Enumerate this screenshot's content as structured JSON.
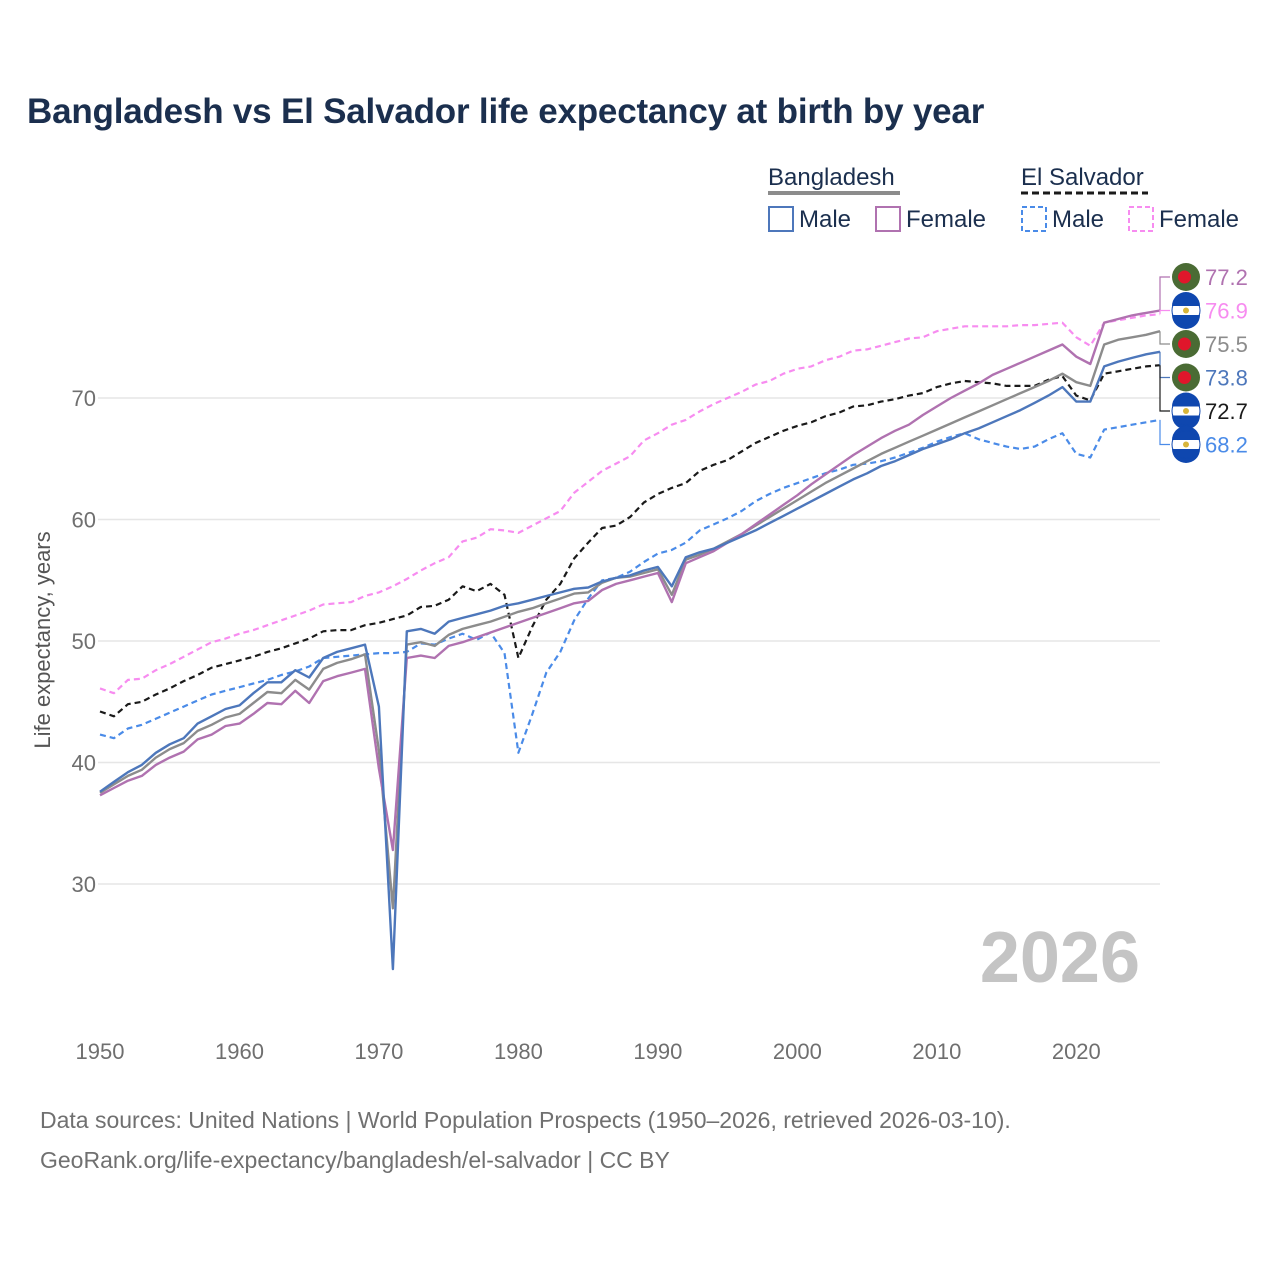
{
  "title": "Bangladesh vs El Salvador life expectancy at birth by year",
  "source": {
    "line1": "Data sources: United Nations | World Population Prospects (1950–2026, retrieved 2026-03-10).",
    "line2": "GeoRank.org/life-expectancy/bangladesh/el-salvador | CC BY"
  },
  "legend": {
    "groups": [
      {
        "country": "Bangladesh",
        "items": [
          "Male",
          "Female"
        ]
      },
      {
        "country": "El Salvador",
        "items": [
          "Male",
          "Female"
        ]
      }
    ]
  },
  "colors": {
    "bgd_total": "#8c8c8c",
    "bgd_male": "#4d77bb",
    "bgd_female": "#b072b0",
    "slv_total": "#1a1a1a",
    "slv_male": "#4a8be8",
    "slv_female": "#f78cf0",
    "grid": "#e6e6e6",
    "title": "#1b2f4e"
  },
  "flags": {
    "bangladesh": "bangladesh-flag-icon",
    "el_salvador": "el-salvador-flag-icon"
  },
  "chart_data": {
    "type": "line",
    "title": "Bangladesh vs El Salvador life expectancy at birth by year",
    "xlabel": "",
    "ylabel": "Life expectancy, years",
    "xlim": [
      1950,
      2026
    ],
    "ylim": [
      22,
      78
    ],
    "xticks": [
      1950,
      1960,
      1970,
      1980,
      1990,
      2000,
      2010,
      2020
    ],
    "yticks": [
      30,
      40,
      50,
      60,
      70
    ],
    "current_year": "2026",
    "x": [
      1950,
      1951,
      1952,
      1953,
      1954,
      1955,
      1956,
      1957,
      1958,
      1959,
      1960,
      1961,
      1962,
      1963,
      1964,
      1965,
      1966,
      1967,
      1968,
      1969,
      1970,
      1971,
      1972,
      1973,
      1974,
      1975,
      1976,
      1977,
      1978,
      1979,
      1980,
      1981,
      1982,
      1983,
      1984,
      1985,
      1986,
      1987,
      1988,
      1989,
      1990,
      1991,
      1992,
      1993,
      1994,
      1995,
      1996,
      1997,
      1998,
      1999,
      2000,
      2001,
      2002,
      2003,
      2004,
      2005,
      2006,
      2007,
      2008,
      2009,
      2010,
      2011,
      2012,
      2013,
      2014,
      2015,
      2016,
      2017,
      2018,
      2019,
      2020,
      2021,
      2022,
      2023,
      2024,
      2025,
      2026
    ],
    "series": [
      {
        "name": "Bangladesh",
        "style": "solid",
        "color_key": "bgd_total",
        "end_label": "75.5",
        "flag": "bangladesh",
        "values": [
          37.5,
          38.2,
          38.9,
          39.4,
          40.4,
          41.1,
          41.6,
          42.6,
          43.1,
          43.7,
          44.0,
          44.9,
          45.8,
          45.7,
          46.8,
          46.0,
          47.7,
          48.2,
          48.5,
          48.9,
          41.0,
          28.0,
          49.7,
          49.9,
          49.6,
          50.5,
          51.0,
          51.3,
          51.6,
          52.0,
          52.4,
          52.7,
          53.1,
          53.5,
          53.9,
          54.0,
          54.8,
          55.2,
          55.3,
          55.6,
          55.9,
          53.8,
          56.7,
          57.1,
          57.6,
          58.2,
          58.8,
          59.5,
          60.2,
          60.9,
          61.6,
          62.3,
          63.0,
          63.6,
          64.2,
          64.8,
          65.4,
          65.9,
          66.4,
          66.9,
          67.4,
          67.9,
          68.4,
          68.9,
          69.4,
          69.9,
          70.4,
          70.9,
          71.4,
          72.0,
          71.3,
          71.0,
          74.4,
          74.8,
          75.0,
          75.2,
          75.5
        ]
      },
      {
        "name": "Bangladesh Male",
        "style": "solid",
        "color_key": "bgd_male",
        "end_label": "73.8",
        "flag": "bangladesh",
        "values": [
          37.6,
          38.4,
          39.2,
          39.8,
          40.8,
          41.5,
          42.0,
          43.2,
          43.8,
          44.4,
          44.7,
          45.7,
          46.6,
          46.6,
          47.6,
          47.0,
          48.6,
          49.1,
          49.4,
          49.7,
          44.6,
          23.0,
          50.8,
          51.0,
          50.6,
          51.6,
          51.9,
          52.2,
          52.5,
          52.9,
          53.1,
          53.4,
          53.7,
          54.0,
          54.3,
          54.4,
          54.9,
          55.2,
          55.4,
          55.8,
          56.1,
          54.5,
          56.9,
          57.3,
          57.6,
          58.1,
          58.6,
          59.1,
          59.7,
          60.3,
          60.9,
          61.5,
          62.1,
          62.7,
          63.3,
          63.8,
          64.4,
          64.8,
          65.3,
          65.8,
          66.2,
          66.6,
          67.1,
          67.5,
          68.0,
          68.5,
          69.0,
          69.6,
          70.2,
          70.9,
          69.7,
          69.7,
          72.6,
          73.0,
          73.3,
          73.6,
          73.8
        ]
      },
      {
        "name": "Bangladesh Female",
        "style": "solid",
        "color_key": "bgd_female",
        "end_label": "77.2",
        "flag": "bangladesh",
        "values": [
          37.3,
          37.9,
          38.5,
          38.9,
          39.8,
          40.4,
          40.9,
          41.9,
          42.3,
          43.0,
          43.2,
          44.0,
          44.9,
          44.8,
          45.9,
          44.9,
          46.7,
          47.1,
          47.4,
          47.7,
          39.5,
          32.8,
          48.6,
          48.8,
          48.6,
          49.6,
          49.9,
          50.3,
          50.7,
          51.1,
          51.5,
          51.9,
          52.3,
          52.7,
          53.1,
          53.3,
          54.2,
          54.7,
          55.0,
          55.3,
          55.6,
          53.2,
          56.4,
          56.9,
          57.4,
          58.1,
          58.8,
          59.6,
          60.4,
          61.2,
          62.0,
          62.9,
          63.7,
          64.5,
          65.3,
          66.0,
          66.7,
          67.3,
          67.8,
          68.6,
          69.3,
          70.0,
          70.6,
          71.2,
          71.9,
          72.4,
          72.9,
          73.4,
          73.9,
          74.4,
          73.4,
          72.8,
          76.2,
          76.5,
          76.8,
          77.0,
          77.2
        ]
      },
      {
        "name": "El Salvador",
        "style": "dashed",
        "color_key": "slv_total",
        "end_label": "72.7",
        "flag": "el_salvador",
        "values": [
          44.2,
          43.8,
          44.8,
          45.0,
          45.6,
          46.1,
          46.7,
          47.2,
          47.8,
          48.1,
          48.4,
          48.7,
          49.1,
          49.4,
          49.8,
          50.2,
          50.8,
          50.9,
          50.9,
          51.3,
          51.5,
          51.8,
          52.1,
          52.8,
          52.9,
          53.4,
          54.5,
          54.1,
          54.7,
          53.8,
          48.6,
          51.2,
          53.4,
          54.7,
          56.8,
          58.1,
          59.3,
          59.5,
          60.2,
          61.4,
          62.1,
          62.6,
          63.0,
          64.0,
          64.5,
          64.9,
          65.6,
          66.3,
          66.8,
          67.3,
          67.7,
          68.0,
          68.5,
          68.8,
          69.3,
          69.4,
          69.7,
          69.9,
          70.2,
          70.4,
          70.9,
          71.2,
          71.4,
          71.3,
          71.2,
          71.0,
          71.0,
          71.0,
          71.5,
          71.8,
          70.2,
          69.8,
          72.0,
          72.2,
          72.4,
          72.6,
          72.7
        ]
      },
      {
        "name": "El Salvador Male",
        "style": "dashed",
        "color_key": "slv_male",
        "end_label": "68.2",
        "flag": "el_salvador",
        "values": [
          42.3,
          42.0,
          42.8,
          43.1,
          43.6,
          44.1,
          44.6,
          45.1,
          45.6,
          45.9,
          46.2,
          46.5,
          46.8,
          47.2,
          47.5,
          47.9,
          48.6,
          48.7,
          48.8,
          48.9,
          49.0,
          49.0,
          49.1,
          49.8,
          49.7,
          50.2,
          50.6,
          50.1,
          50.7,
          49.0,
          40.8,
          44.0,
          47.4,
          49.1,
          51.7,
          53.5,
          55.0,
          55.2,
          55.7,
          56.5,
          57.2,
          57.5,
          58.1,
          59.1,
          59.6,
          60.1,
          60.7,
          61.5,
          62.1,
          62.6,
          63.0,
          63.4,
          63.8,
          64.1,
          64.5,
          64.6,
          64.8,
          65.1,
          65.5,
          65.9,
          66.4,
          66.8,
          67.1,
          66.6,
          66.3,
          66.0,
          65.8,
          66.0,
          66.6,
          67.1,
          65.4,
          65.1,
          67.4,
          67.6,
          67.8,
          68.0,
          68.2
        ]
      },
      {
        "name": "El Salvador Female",
        "style": "dashed",
        "color_key": "slv_female",
        "end_label": "76.9",
        "flag": "el_salvador",
        "values": [
          46.1,
          45.7,
          46.8,
          46.9,
          47.6,
          48.1,
          48.7,
          49.3,
          49.9,
          50.2,
          50.6,
          50.9,
          51.3,
          51.7,
          52.1,
          52.5,
          53.0,
          53.1,
          53.2,
          53.7,
          54.0,
          54.5,
          55.1,
          55.8,
          56.4,
          56.9,
          58.2,
          58.5,
          59.2,
          59.1,
          58.9,
          59.5,
          60.1,
          60.7,
          62.2,
          63.1,
          64.0,
          64.6,
          65.2,
          66.5,
          67.1,
          67.8,
          68.2,
          68.9,
          69.5,
          70.0,
          70.5,
          71.1,
          71.4,
          72.0,
          72.4,
          72.6,
          73.1,
          73.4,
          73.9,
          74.0,
          74.3,
          74.6,
          74.9,
          75.0,
          75.5,
          75.7,
          75.9,
          75.9,
          75.9,
          75.9,
          76.0,
          76.0,
          76.1,
          76.2,
          75.0,
          74.3,
          76.2,
          76.4,
          76.6,
          76.8,
          76.9
        ]
      }
    ]
  }
}
